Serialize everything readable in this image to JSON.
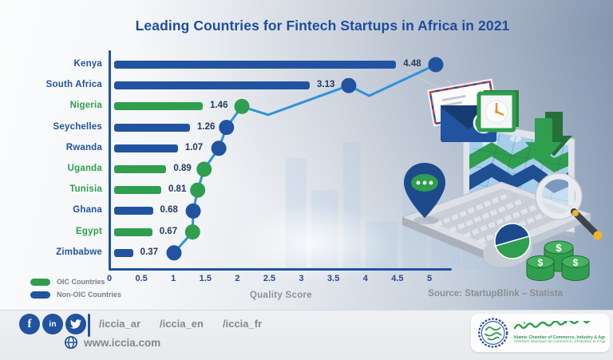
{
  "title": "Leading Countries for Fintech Startups in Africa in 2021",
  "chart_data": {
    "type": "bar",
    "orientation": "horizontal",
    "title": "Leading Countries for Fintech Startups in Africa in 2021",
    "categories": [
      "Kenya",
      "South Africa",
      "Nigeria",
      "Seychelles",
      "Rwanda",
      "Uganda",
      "Tunisia",
      "Ghana",
      "Egypt",
      "Zimbabwe"
    ],
    "values": [
      4.48,
      3.13,
      1.46,
      1.26,
      1.07,
      0.89,
      0.81,
      0.68,
      0.67,
      0.37
    ],
    "groups": [
      "non-oic",
      "non-oic",
      "oic",
      "non-oic",
      "non-oic",
      "oic",
      "oic",
      "non-oic",
      "oic",
      "non-oic"
    ],
    "xlabel": "Quality Score",
    "xticks": [
      "0",
      "0.5",
      "1",
      "1.5",
      "2",
      "2.5",
      "3",
      "3.5",
      "4",
      "4.5",
      "5"
    ],
    "xlim": [
      0,
      5.5
    ],
    "grid": false,
    "legend_position": "bottom-left",
    "legend": [
      {
        "key": "oic",
        "label": "OIC Countries",
        "color": "#2f9e4e"
      },
      {
        "key": "non-oic",
        "label": "Non-OIC Countries",
        "color": "#2153a0"
      }
    ],
    "colors": {
      "oic": "#2f9e4e",
      "non-oic": "#2153a0",
      "trend_line": "#2e93dd",
      "axis": "#2153a0",
      "value_text": "#223a5e",
      "tick_text": "#2a4a8b",
      "title_text": "#1d4d9f"
    },
    "trend_line": {
      "description": "decorative connector line with markers beside each value label",
      "color": "#2e93dd",
      "points": [
        {
          "score": 1.01,
          "row": 9
        },
        {
          "score": 1.3,
          "row": 8
        },
        {
          "score": 1.31,
          "row": 7
        },
        {
          "score": 1.38,
          "row": 6
        },
        {
          "score": 1.48,
          "row": 5
        },
        {
          "score": 1.71,
          "row": 4
        },
        {
          "score": 1.83,
          "row": 3
        },
        {
          "score": 2.07,
          "row": 2
        },
        {
          "score": 2.48,
          "row": 2.4,
          "dip": true
        },
        {
          "score": 3.74,
          "row": 1
        },
        {
          "score": 4.06,
          "row": 1.49,
          "dip": true
        },
        {
          "score": 5.1,
          "row": 0
        }
      ]
    },
    "source": "Source: StartupBlink – Statista"
  },
  "footer": {
    "social": [
      "facebook",
      "linkedin",
      "twitter"
    ],
    "handles": [
      "/iccia_ar",
      "/iccia_en",
      "/iccia_fr"
    ],
    "website": "www.iccia.com",
    "logo": {
      "org_en": "Islamic Chamber of Commerce, Industry & Agriculture",
      "org_fr": "Chambre Islamique de Commerce, d'Industrie et d'Agriculture"
    }
  },
  "icons": {
    "facebook_glyph": "f",
    "linkedin_glyph": "in",
    "dollar_glyph": "$"
  }
}
